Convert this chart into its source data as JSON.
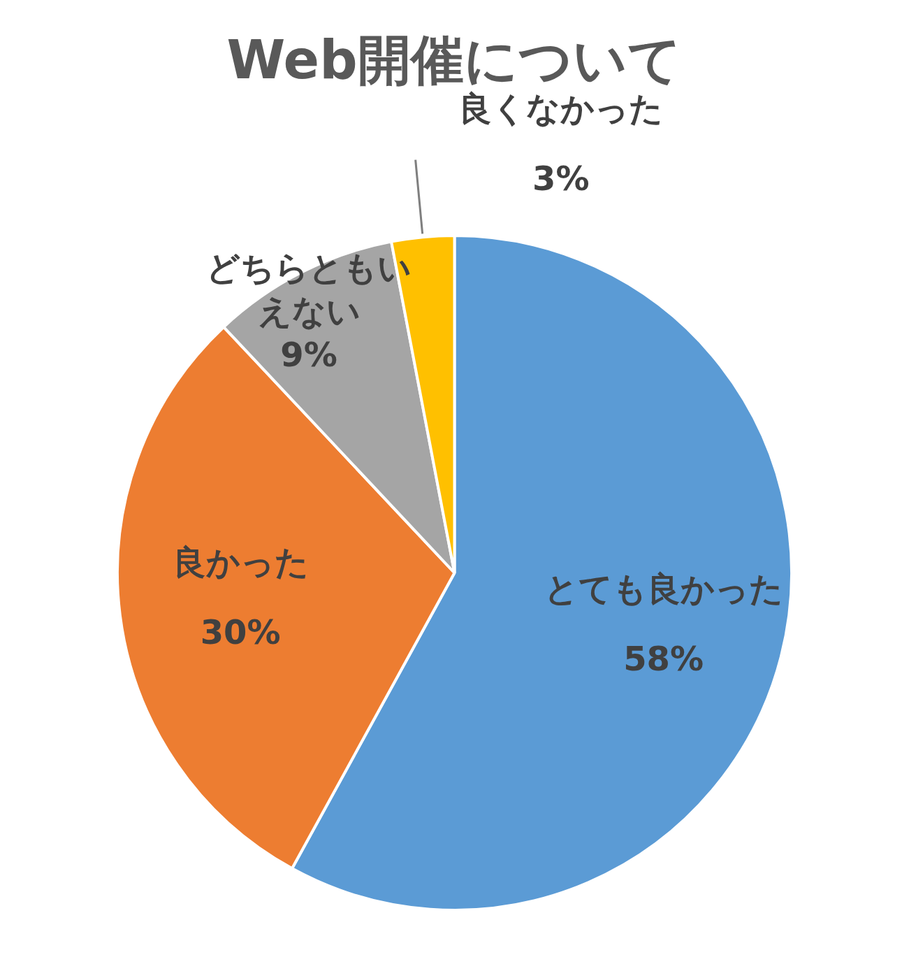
{
  "chart_data": {
    "type": "pie",
    "title": "Web開催について",
    "categories": [
      "とても良かった",
      "良かった",
      "どちらともいえない",
      "良くなかった"
    ],
    "values": [
      58,
      30,
      9,
      3
    ],
    "value_labels": [
      "58%",
      "30%",
      "9%",
      "3%"
    ],
    "colors": [
      "#5b9bd5",
      "#ed7d31",
      "#a5a5a5",
      "#ffc000"
    ],
    "legend": false
  }
}
